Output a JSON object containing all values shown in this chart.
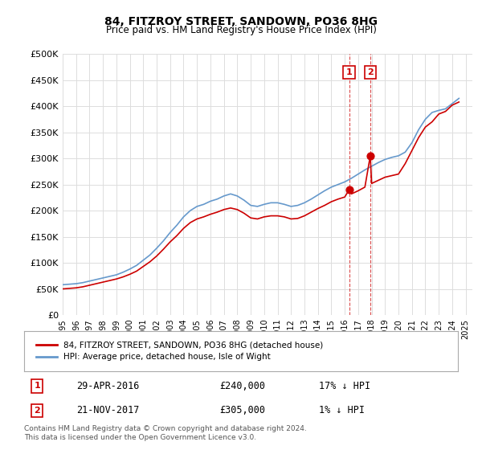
{
  "title": "84, FITZROY STREET, SANDOWN, PO36 8HG",
  "subtitle": "Price paid vs. HM Land Registry's House Price Index (HPI)",
  "ylabel": "",
  "ylim": [
    0,
    500000
  ],
  "yticks": [
    0,
    50000,
    100000,
    150000,
    200000,
    250000,
    300000,
    350000,
    400000,
    450000,
    500000
  ],
  "ytick_labels": [
    "£0",
    "£50K",
    "£100K",
    "£150K",
    "£200K",
    "£250K",
    "£300K",
    "£350K",
    "£400K",
    "£450K",
    "£500K"
  ],
  "xlim_start": 1995.0,
  "xlim_end": 2025.5,
  "red_color": "#cc0000",
  "blue_color": "#6699cc",
  "transaction_color": "#cc0000",
  "dashed_color": "#cc0000",
  "legend_label_red": "84, FITZROY STREET, SANDOWN, PO36 8HG (detached house)",
  "legend_label_blue": "HPI: Average price, detached house, Isle of Wight",
  "transaction1_date": "29-APR-2016",
  "transaction1_price": 240000,
  "transaction1_pct": "17% ↓ HPI",
  "transaction1_year": 2016.33,
  "transaction2_date": "21-NOV-2017",
  "transaction2_price": 305000,
  "transaction2_pct": "1% ↓ HPI",
  "transaction2_year": 2017.9,
  "footnote": "Contains HM Land Registry data © Crown copyright and database right 2024.\nThis data is licensed under the Open Government Licence v3.0.",
  "background_color": "#ffffff",
  "grid_color": "#dddddd",
  "hpi_years": [
    1995,
    1995.5,
    1996,
    1996.5,
    1997,
    1997.5,
    1998,
    1998.5,
    1999,
    1999.5,
    2000,
    2000.5,
    2001,
    2001.5,
    2002,
    2002.5,
    2003,
    2003.5,
    2004,
    2004.5,
    2005,
    2005.5,
    2006,
    2006.5,
    2007,
    2007.5,
    2008,
    2008.5,
    2009,
    2009.5,
    2010,
    2010.5,
    2011,
    2011.5,
    2012,
    2012.5,
    2013,
    2013.5,
    2014,
    2014.5,
    2015,
    2015.5,
    2016,
    2016.5,
    2017,
    2017.5,
    2018,
    2018.5,
    2019,
    2019.5,
    2020,
    2020.5,
    2021,
    2021.5,
    2022,
    2022.5,
    2023,
    2023.5,
    2024,
    2024.5
  ],
  "hpi_values": [
    58000,
    59000,
    60000,
    62000,
    65000,
    68000,
    71000,
    74000,
    77000,
    82000,
    88000,
    95000,
    105000,
    115000,
    128000,
    142000,
    158000,
    172000,
    188000,
    200000,
    208000,
    212000,
    218000,
    222000,
    228000,
    232000,
    228000,
    220000,
    210000,
    208000,
    212000,
    215000,
    215000,
    212000,
    208000,
    210000,
    215000,
    222000,
    230000,
    238000,
    245000,
    250000,
    255000,
    262000,
    270000,
    278000,
    285000,
    292000,
    298000,
    302000,
    305000,
    312000,
    330000,
    355000,
    375000,
    388000,
    392000,
    395000,
    405000,
    415000
  ],
  "red_years": [
    1995,
    1995.5,
    1996,
    1996.5,
    1997,
    1997.5,
    1998,
    1998.5,
    1999,
    1999.5,
    2000,
    2000.5,
    2001,
    2001.5,
    2002,
    2002.5,
    2003,
    2003.5,
    2004,
    2004.5,
    2005,
    2005.5,
    2006,
    2006.5,
    2007,
    2007.5,
    2008,
    2008.5,
    2009,
    2009.5,
    2010,
    2010.5,
    2011,
    2011.5,
    2012,
    2012.5,
    2013,
    2013.5,
    2014,
    2014.5,
    2015,
    2015.5,
    2016,
    2016.33,
    2016.5,
    2017,
    2017.5,
    2017.9,
    2018,
    2018.5,
    2019,
    2019.5,
    2020,
    2020.5,
    2021,
    2021.5,
    2022,
    2022.5,
    2023,
    2023.5,
    2024,
    2024.5
  ],
  "red_values": [
    50000,
    51000,
    52000,
    54000,
    57000,
    60000,
    63000,
    66000,
    69000,
    73000,
    78000,
    84000,
    93000,
    102000,
    113000,
    126000,
    140000,
    152000,
    166000,
    177000,
    184000,
    188000,
    193000,
    197000,
    202000,
    205000,
    202000,
    195000,
    186000,
    184000,
    188000,
    190000,
    190000,
    188000,
    184000,
    185000,
    190000,
    197000,
    204000,
    210000,
    217000,
    222000,
    226000,
    240000,
    232000,
    238000,
    245000,
    305000,
    252000,
    258000,
    264000,
    267000,
    270000,
    290000,
    315000,
    340000,
    360000,
    370000,
    385000,
    390000,
    402000,
    408000
  ]
}
